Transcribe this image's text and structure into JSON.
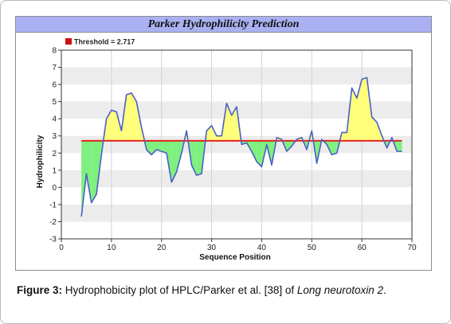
{
  "caption": {
    "label": "Figure 3:",
    "text": " Hydrophobicity plot of HPLC/Parker et al. [38] of ",
    "italic": "Long neurotoxin 2",
    "end": "."
  },
  "chart_data": {
    "type": "line",
    "title": "Parker Hydrophilicity Prediction",
    "xlabel": "Sequence Position",
    "ylabel": "Hydrophilicity",
    "xlim": [
      0,
      70
    ],
    "ylim": [
      -3,
      8
    ],
    "xticks": [
      "0",
      "10",
      "20",
      "30",
      "40",
      "50",
      "60",
      "70"
    ],
    "yticks": [
      "-3",
      "-2",
      "-1",
      "0",
      "1",
      "2",
      "3",
      "4",
      "5",
      "6",
      "7",
      "8"
    ],
    "grid": true,
    "legend": {
      "position": "top-left",
      "label": "Threshold = 2.717"
    },
    "threshold": {
      "value": 2.717,
      "x_start": 4,
      "x_end": 68
    },
    "colors": {
      "line": "#4a5fc8",
      "threshold": "#e82020",
      "legend_marker": "#cc1010",
      "above_fill": "#ffff7a",
      "below_fill": "#7ef07e",
      "band": "#ececec"
    },
    "series": [
      {
        "x": [
          4,
          5,
          6,
          7,
          8,
          9,
          10,
          11,
          12,
          13,
          14,
          15,
          16,
          17,
          18,
          19,
          20,
          21,
          22,
          23,
          24,
          25,
          26,
          27,
          28,
          29,
          30,
          31,
          32,
          33,
          34,
          35,
          36,
          37,
          38,
          39,
          40,
          41,
          42,
          43,
          44,
          45,
          46,
          47,
          48,
          49,
          50,
          51,
          52,
          53,
          54,
          55,
          56,
          57,
          58,
          59,
          60,
          61,
          62,
          63,
          64,
          65,
          66,
          67,
          68
        ],
        "values": [
          -1.7,
          0.8,
          -0.9,
          -0.4,
          1.9,
          4.0,
          4.5,
          4.4,
          3.3,
          5.4,
          5.5,
          5.0,
          3.5,
          2.2,
          1.9,
          2.2,
          2.1,
          2.0,
          0.3,
          0.9,
          2.0,
          3.3,
          1.3,
          0.7,
          0.8,
          3.3,
          3.6,
          3.0,
          3.0,
          4.9,
          4.2,
          4.7,
          2.5,
          2.6,
          2.1,
          1.5,
          1.2,
          2.5,
          1.3,
          2.9,
          2.8,
          2.1,
          2.4,
          2.8,
          2.9,
          2.2,
          3.3,
          1.4,
          2.8,
          2.5,
          1.9,
          2.0,
          3.2,
          3.2,
          5.8,
          5.2,
          6.3,
          6.4,
          4.1,
          3.8,
          3.0,
          2.3,
          2.9,
          2.1,
          2.1
        ]
      }
    ]
  }
}
